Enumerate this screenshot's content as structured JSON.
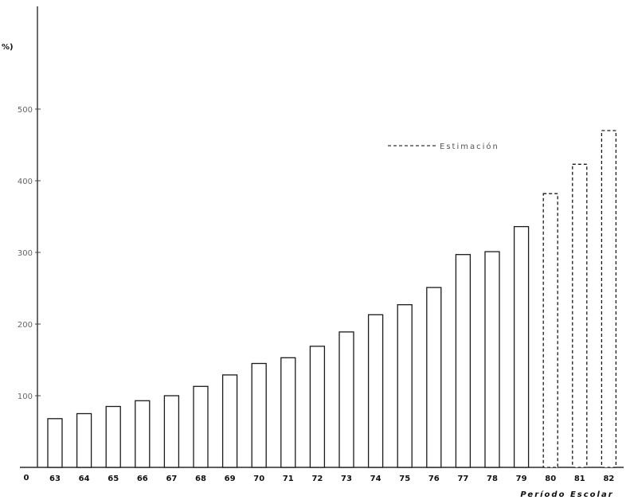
{
  "chart_data": {
    "type": "bar",
    "title": "",
    "ylabel": "%)",
    "xlabel": "Período Escolar",
    "origin_label": "0",
    "ylim": [
      0,
      560
    ],
    "yticks": [
      100,
      200,
      300,
      400,
      500
    ],
    "grid": false,
    "legend": {
      "position": "top-right",
      "entries": [
        {
          "label": "Estimación",
          "style": "dashed"
        }
      ]
    },
    "categories": [
      "63",
      "64",
      "65",
      "66",
      "67",
      "68",
      "69",
      "70",
      "71",
      "72",
      "73",
      "74",
      "75",
      "76",
      "77",
      "78",
      "79",
      "80",
      "81",
      "82"
    ],
    "values": [
      68,
      75,
      85,
      93,
      100,
      113,
      129,
      145,
      153,
      169,
      189,
      213,
      227,
      251,
      297,
      301,
      336,
      382,
      423,
      470
    ],
    "estimated": [
      false,
      false,
      false,
      false,
      false,
      false,
      false,
      false,
      false,
      false,
      false,
      false,
      false,
      false,
      false,
      false,
      false,
      true,
      true,
      true
    ]
  }
}
